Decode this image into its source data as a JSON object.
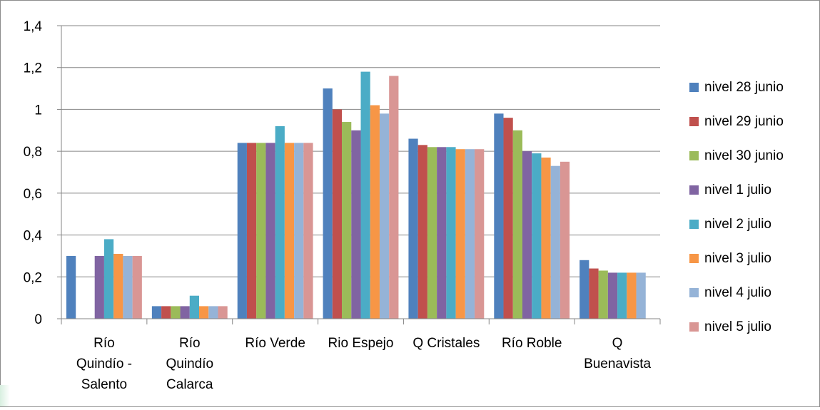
{
  "chart_data": {
    "type": "bar",
    "title": "",
    "xlabel": "",
    "ylabel": "",
    "ylim": [
      0,
      1.4
    ],
    "yticks": [
      "0",
      "0,2",
      "0,4",
      "0,6",
      "0,8",
      "1",
      "1,2",
      "1,4"
    ],
    "grid": true,
    "legend_position": "right",
    "categories": [
      [
        "Río",
        "Quindío -",
        "Salento"
      ],
      [
        "Río",
        "Quindío",
        "Calarca"
      ],
      [
        "Río Verde"
      ],
      [
        "Rio Espejo"
      ],
      [
        "Q Cristales"
      ],
      [
        "Río Roble"
      ],
      [
        "Q",
        "Buenavista"
      ]
    ],
    "series": [
      {
        "name": "nivel 28 junio",
        "color": "#4f81bd",
        "values": [
          0.3,
          0.06,
          0.84,
          1.1,
          0.86,
          0.98,
          0.28
        ]
      },
      {
        "name": "nivel 29 junio",
        "color": "#c0504d",
        "values": [
          null,
          0.06,
          0.84,
          1.0,
          0.83,
          0.96,
          0.24
        ]
      },
      {
        "name": "nivel 30 junio",
        "color": "#9bbb59",
        "values": [
          null,
          0.06,
          0.84,
          0.94,
          0.82,
          0.9,
          0.23
        ]
      },
      {
        "name": "nivel 1 julio",
        "color": "#8064a2",
        "values": [
          0.3,
          0.06,
          0.84,
          0.9,
          0.82,
          0.8,
          0.22
        ]
      },
      {
        "name": "nivel 2 julio",
        "color": "#4bacc6",
        "values": [
          0.38,
          0.11,
          0.92,
          1.18,
          0.82,
          0.79,
          0.22
        ]
      },
      {
        "name": "nivel 3 julio",
        "color": "#f79646",
        "values": [
          0.31,
          0.06,
          0.84,
          1.02,
          0.81,
          0.77,
          0.22
        ]
      },
      {
        "name": "nivel 4 julio",
        "color": "#95b3d7",
        "values": [
          0.3,
          0.06,
          0.84,
          0.98,
          0.81,
          0.73,
          0.22
        ]
      },
      {
        "name": "nivel 5 julio",
        "color": "#d99694",
        "values": [
          0.3,
          0.06,
          0.84,
          1.16,
          0.81,
          0.75,
          null
        ]
      }
    ]
  }
}
